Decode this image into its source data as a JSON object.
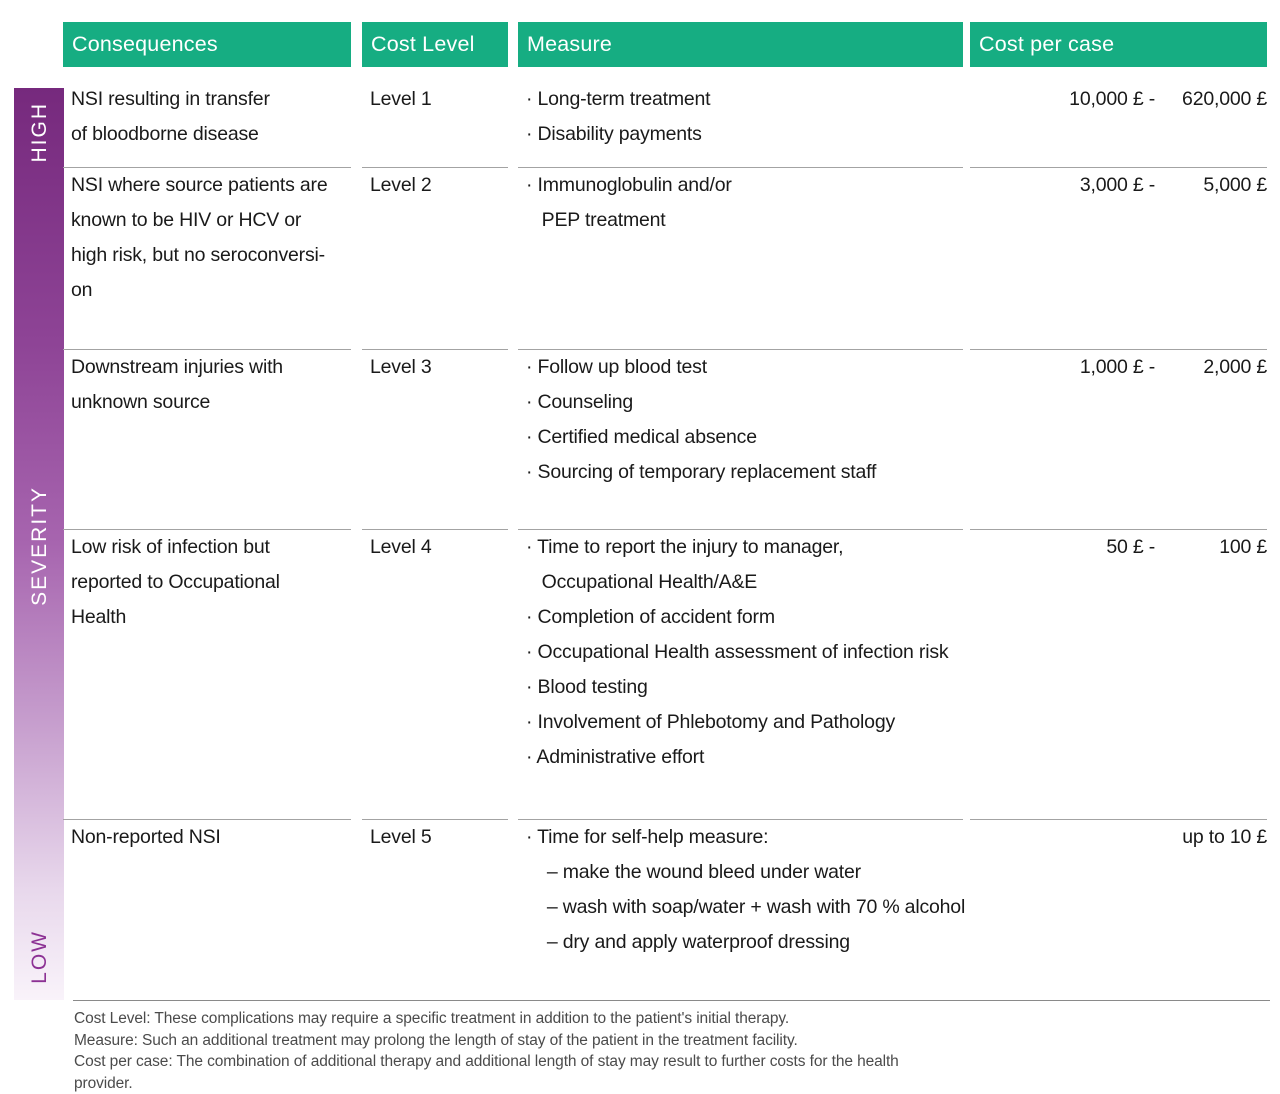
{
  "severity_axis": {
    "title": "SEVERITY",
    "top_label": "HIGH",
    "bottom_label": "LOW"
  },
  "header": {
    "columns": [
      {
        "label": "Consequences"
      },
      {
        "label": "Cost Level"
      },
      {
        "label": "Measure"
      },
      {
        "label": "Cost per case"
      }
    ]
  },
  "rows": [
    {
      "consequence": "NSI resulting in transfer\nof bloodborne disease",
      "cost_level": "Level 1",
      "measure": "· Long-term treatment\n· Disability payments",
      "cost_low": "10,000 £ -",
      "cost_high": "620,000 £"
    },
    {
      "consequence": "NSI where source patients are\nknown to be HIV or HCV or\nhigh risk, but no seroconversi-\non",
      "cost_level": "Level 2",
      "measure": "· Immunoglobulin and/or\n   PEP treatment",
      "cost_low": "3,000 £ -",
      "cost_high": "5,000 £"
    },
    {
      "consequence": "Downstream injuries with\nunknown source",
      "cost_level": "Level 3",
      "measure": "· Follow up blood test\n· Counseling\n· Certified medical absence\n· Sourcing of temporary replacement staff",
      "cost_low": "1,000 £ -",
      "cost_high": "2,000 £"
    },
    {
      "consequence": "Low risk of infection but\nreported to Occupational\nHealth",
      "cost_level": "Level 4",
      "measure": "· Time to report the injury to manager,\n   Occupational Health/A&E\n· Completion of accident form\n· Occupational Health assessment of infection risk\n· Blood testing\n· Involvement of Phlebotomy and Pathology\n· Administrative effort",
      "cost_low": "50 £ -",
      "cost_high": "100 £"
    },
    {
      "consequence": "Non-reported NSI",
      "cost_level": "Level 5",
      "measure": "· Time for self-help measure:\n    – make the wound bleed under water\n    – wash with soap/water + wash with 70 % alcohol\n    – dry and apply waterproof dressing",
      "cost_low": "",
      "cost_high": "up to 10 £"
    }
  ],
  "footnotes": [
    "Cost Level: These complications may require a specific treatment in addition to the patient's initial therapy.",
    "Measure: Such an additional treatment may prolong the length of stay of the patient in the treatment facility.",
    "Cost per case: The combination of additional therapy and additional length of stay may result to further costs for the health\nprovider."
  ],
  "colors": {
    "header_bg": "#16ad82",
    "severity_gradient_top": "#76297d",
    "severity_gradient_bottom": "#f9f3fa",
    "low_label_text": "#8c3194",
    "header_text": "#ffffff",
    "body_text": "#1a1a1a",
    "footnote_text": "#4b4b4b",
    "separator": "#a3a3a3"
  }
}
